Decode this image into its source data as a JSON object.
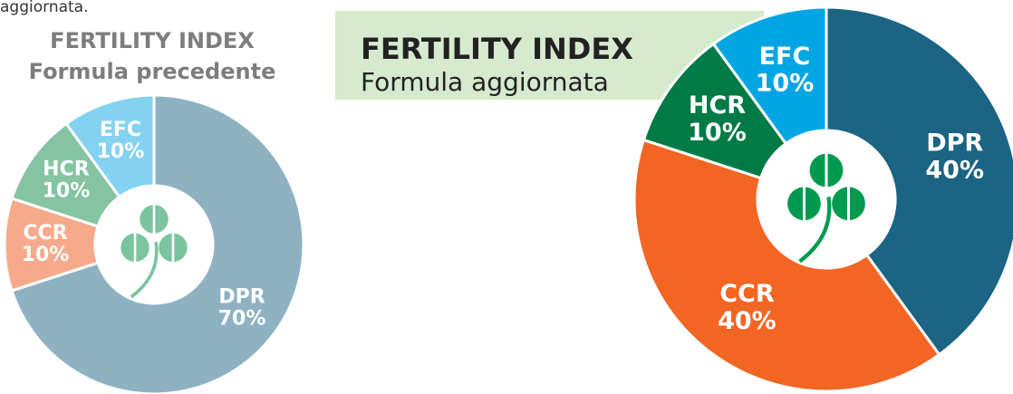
{
  "caption": "aggiornata.",
  "chart_data": [
    {
      "type": "pie",
      "title": "FERTILITY INDEX",
      "subtitle": "Formula precedente",
      "categories": [
        "DPR",
        "CCR",
        "HCR",
        "EFC"
      ],
      "values": [
        70,
        10,
        10,
        10
      ],
      "value_labels": [
        "70%",
        "10%",
        "10%",
        "10%"
      ],
      "colors": [
        "#8fb2c3",
        "#f6aa8b",
        "#84c4a2",
        "#84d2f1"
      ]
    },
    {
      "type": "pie",
      "title": "FERTILITY INDEX",
      "subtitle": "Formula aggiornata",
      "categories": [
        "DPR",
        "CCR",
        "HCR",
        "EFC"
      ],
      "values": [
        40,
        40,
        10,
        10
      ],
      "value_labels": [
        "40%",
        "40%",
        "10%",
        "10%"
      ],
      "colors": [
        "#1b6484",
        "#f26522",
        "#007a47",
        "#00a6e4"
      ]
    }
  ]
}
